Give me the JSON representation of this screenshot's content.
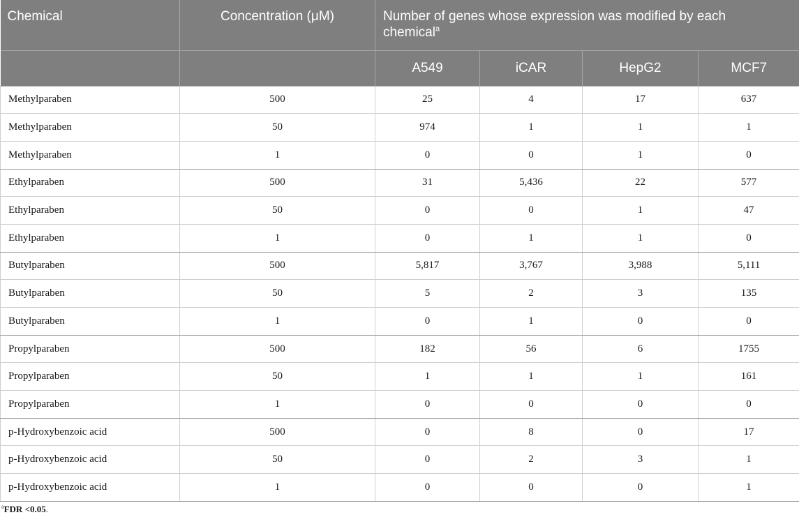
{
  "header": {
    "chemical": "Chemical",
    "concentration": "Concentration (μM)",
    "group_title": "Number of genes whose expression was modified by each chemical",
    "group_footnote_mark": "a",
    "cell_lines": [
      "A549",
      "iCAR",
      "HepG2",
      "MCF7"
    ]
  },
  "rows": [
    {
      "chemical": "Methylparaben",
      "concentration": "500",
      "values": [
        "25",
        "4",
        "17",
        "637"
      ]
    },
    {
      "chemical": "Methylparaben",
      "concentration": "50",
      "values": [
        "974",
        "1",
        "1",
        "1"
      ]
    },
    {
      "chemical": "Methylparaben",
      "concentration": "1",
      "values": [
        "0",
        "0",
        "1",
        "0"
      ]
    },
    {
      "chemical": "Ethylparaben",
      "concentration": "500",
      "values": [
        "31",
        "5,436",
        "22",
        "577"
      ]
    },
    {
      "chemical": "Ethylparaben",
      "concentration": "50",
      "values": [
        "0",
        "0",
        "1",
        "47"
      ]
    },
    {
      "chemical": "Ethylparaben",
      "concentration": "1",
      "values": [
        "0",
        "1",
        "1",
        "0"
      ]
    },
    {
      "chemical": "Butylparaben",
      "concentration": "500",
      "values": [
        "5,817",
        "3,767",
        "3,988",
        "5,111"
      ]
    },
    {
      "chemical": "Butylparaben",
      "concentration": "50",
      "values": [
        "5",
        "2",
        "3",
        "135"
      ]
    },
    {
      "chemical": "Butylparaben",
      "concentration": "1",
      "values": [
        "0",
        "1",
        "0",
        "0"
      ]
    },
    {
      "chemical": "Propylparaben",
      "concentration": "500",
      "values": [
        "182",
        "56",
        "6",
        "1755"
      ]
    },
    {
      "chemical": "Propylparaben",
      "concentration": "50",
      "values": [
        "1",
        "1",
        "1",
        "161"
      ]
    },
    {
      "chemical": "Propylparaben",
      "concentration": "1",
      "values": [
        "0",
        "0",
        "0",
        "0"
      ]
    },
    {
      "chemical": "p-Hydroxybenzoic acid",
      "concentration": "500",
      "values": [
        "0",
        "8",
        "0",
        "17"
      ]
    },
    {
      "chemical": "p-Hydroxybenzoic acid",
      "concentration": "50",
      "values": [
        "0",
        "2",
        "3",
        "1"
      ]
    },
    {
      "chemical": "p-Hydroxybenzoic acid",
      "concentration": "1",
      "values": [
        "0",
        "0",
        "0",
        "1"
      ]
    }
  ],
  "footnote": {
    "mark": "a",
    "text": "FDR <0.05",
    "suffix": "."
  }
}
